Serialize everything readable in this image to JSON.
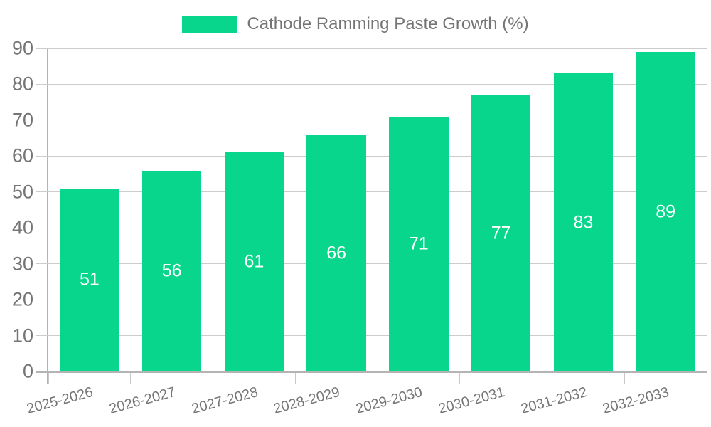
{
  "legend": {
    "label": "Cathode Ramming Paste Growth (%)"
  },
  "chart_data": {
    "type": "bar",
    "title": "Cathode Ramming Paste Growth (%)",
    "series": [
      {
        "name": "Cathode Ramming Paste Growth (%)",
        "values": [
          51,
          56,
          61,
          66,
          71,
          77,
          83,
          89
        ]
      }
    ],
    "categories": [
      "2025-2026",
      "2026-2027",
      "2027-2028",
      "2028-2029",
      "2029-2030",
      "2030-2031",
      "2031-2032",
      "2032-2033"
    ],
    "values": [
      51,
      56,
      61,
      66,
      71,
      77,
      83,
      89
    ],
    "value_labels_inside_bars": true,
    "xlabel": "",
    "ylabel": "",
    "ylim": [
      0,
      90
    ],
    "yticks": [
      0,
      10,
      20,
      30,
      40,
      50,
      60,
      70,
      80,
      90
    ],
    "grid": true,
    "legend_position": "top-center",
    "x_label_rotation_deg": -15,
    "colors": {
      "bar_color": "#09D68D",
      "axis_text_color": "#757575",
      "grid_color": "#CCCCCC",
      "axis_line_color": "#B4B4B4",
      "x_tick_color": "#C9C9C9",
      "value_label_color": "#FFFFFF",
      "background": "#FFFFFF"
    }
  }
}
